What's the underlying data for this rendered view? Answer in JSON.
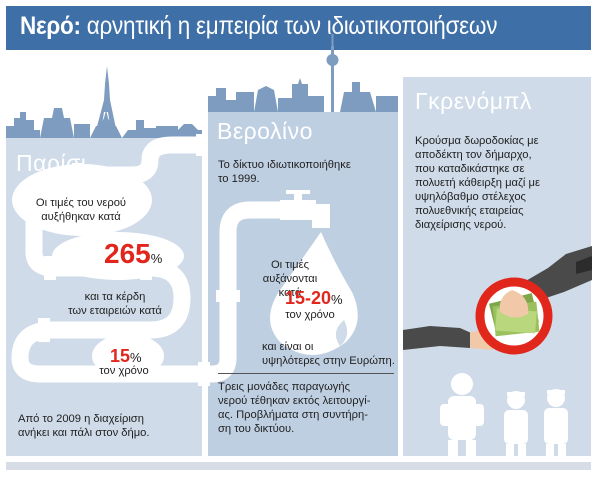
{
  "title": {
    "bold": "Νερό:",
    "rest": "αρνητική η εμπειρία των ιδιωτικοποιήσεων"
  },
  "paris": {
    "name": "Παρίσι",
    "line1": "Οι τιμές του νερού",
    "line2": "αυξήθηκαν κατά",
    "stat1": "265",
    "stat1_unit": "%",
    "line3": "και τα κέρδη",
    "line4": "των εταιρειών κατά",
    "stat2": "15",
    "stat2_unit": "%",
    "stat2_caption": "τον χρόνο",
    "footer1": "Από το 2009 η διαχείριση",
    "footer2": "ανήκει και πάλι στον δήμο."
  },
  "berlin": {
    "name": "Βερολίνο",
    "intro1": "Το δίκτυο ιδιωτικοποιήθηκε",
    "intro2": "το 1999.",
    "line1": "Οι τιμές",
    "line2": "αυξάνονται κατά",
    "stat": "15-20",
    "stat_unit": "%",
    "stat_caption": "τον χρόνο",
    "line3": "και είναι οι",
    "line4": "υψηλότερες στην Ευρώπη.",
    "footer1": "Τρεις μονάδες παραγωγής",
    "footer2": "νερού τέθηκαν εκτός λειτουργί-",
    "footer3": "ας. Προβλήματα στη συντήρη-",
    "footer4": "ση του δικτύου."
  },
  "grenoble": {
    "name": "Γκρενόμπλ",
    "line1": "Κρούσμα δωροδοκίας με",
    "line2": "αποδέκτη τον δήμαρχο,",
    "line3": "που καταδικάστηκε σε",
    "line4": "πολυετή κάθειρξη μαζί με",
    "line5": "υψηλόβαθμο στέλεχος",
    "line6": "πολυεθνικής εταιρείας",
    "line7": "διαχείρισης νερού."
  },
  "icons": [
    "paris-skyline-icon",
    "berlin-skyline-icon",
    "water-pipe-icon",
    "water-tap-icon",
    "water-drop-icon",
    "bribe-hands-icon",
    "banknotes-icon",
    "handcuffed-mayor-icon",
    "police-officers-icon"
  ],
  "colors": {
    "title_bg": "#3e6fa6",
    "panel_light": "#cfdbe8",
    "panel_mid": "#bfcfe2",
    "skyline": "#7d9cc0",
    "pipe": "#ffffff",
    "accent_red": "#e1261c",
    "text": "#1f1f1f"
  }
}
